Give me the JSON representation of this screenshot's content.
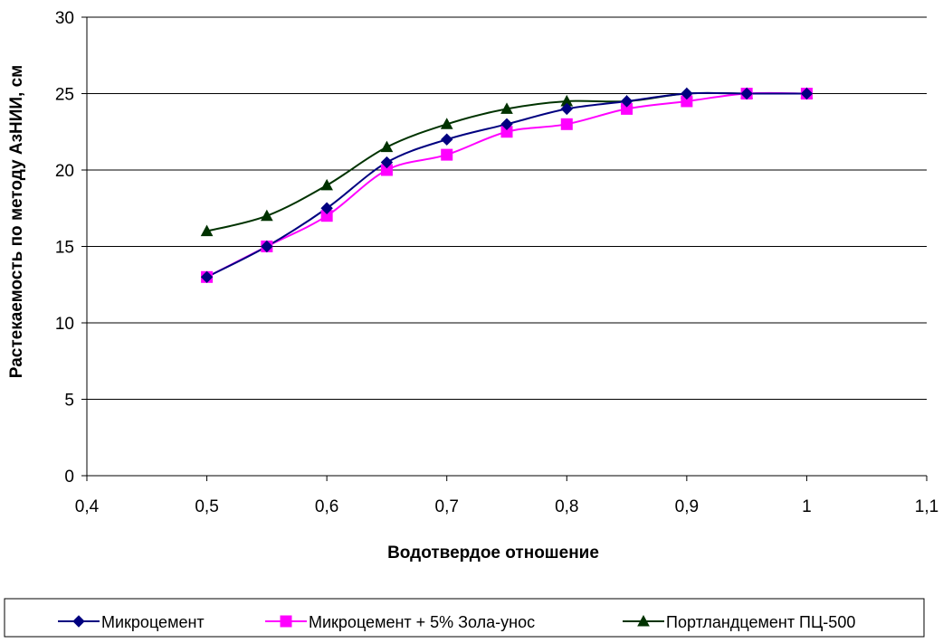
{
  "chart_data": {
    "type": "line",
    "xlabel": "Водотвердое отношение",
    "ylabel": "Растекаемость по методу АзНИИ, см",
    "xlim": [
      0.4,
      1.1
    ],
    "ylim": [
      0,
      30
    ],
    "x_ticks": [
      "0,4",
      "0,5",
      "0,6",
      "0,7",
      "0,8",
      "0,9",
      "1",
      "1,1"
    ],
    "x_tick_values": [
      0.4,
      0.5,
      0.6,
      0.7,
      0.8,
      0.9,
      1.0,
      1.1
    ],
    "y_ticks": [
      "0",
      "5",
      "10",
      "15",
      "20",
      "25",
      "30"
    ],
    "y_tick_values": [
      0,
      5,
      10,
      15,
      20,
      25,
      30
    ],
    "grid": "horizontal",
    "legend_position": "bottom",
    "series": [
      {
        "name": "Микроцемент",
        "color": "#000080",
        "marker": "diamond",
        "x": [
          0.5,
          0.55,
          0.6,
          0.65,
          0.7,
          0.75,
          0.8,
          0.85,
          0.9,
          0.95,
          1.0
        ],
        "y": [
          13,
          15,
          17.5,
          20.5,
          22,
          23,
          24,
          24.5,
          25,
          25,
          25
        ]
      },
      {
        "name": "Микроцемент + 5% Зола-унос",
        "color": "#ff00ff",
        "marker": "square",
        "x": [
          0.5,
          0.55,
          0.6,
          0.65,
          0.7,
          0.75,
          0.8,
          0.85,
          0.9,
          0.95,
          1.0
        ],
        "y": [
          13,
          15,
          17,
          20,
          21,
          22.5,
          23,
          24,
          24.5,
          25,
          25
        ]
      },
      {
        "name": "Портландцемент ПЦ-500",
        "color": "#003300",
        "marker": "triangle",
        "x": [
          0.5,
          0.55,
          0.6,
          0.65,
          0.7,
          0.75,
          0.8,
          0.85,
          0.9,
          0.95,
          1.0
        ],
        "y": [
          16,
          17,
          19,
          21.5,
          23,
          24,
          24.5,
          24.5,
          25,
          25,
          25
        ]
      }
    ]
  }
}
